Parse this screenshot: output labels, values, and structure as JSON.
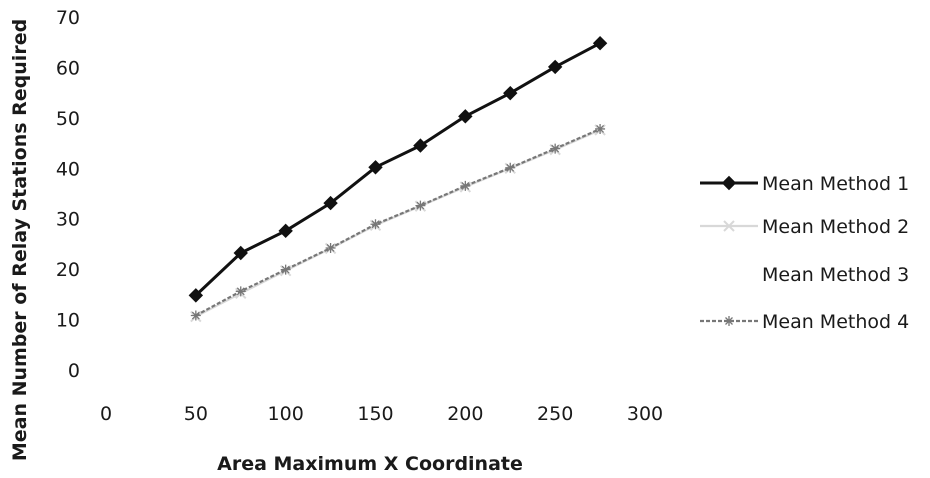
{
  "chart_data": {
    "type": "line",
    "title": "",
    "xlabel": "Area Maximum X Coordinate",
    "ylabel": "Mean Number of Relay Stations Required",
    "xlim": [
      0,
      300
    ],
    "ylim": [
      0,
      70
    ],
    "x_ticks": [
      "0",
      "50",
      "100",
      "150",
      "200",
      "250",
      "300"
    ],
    "y_ticks": [
      "0",
      "10",
      "20",
      "30",
      "40",
      "50",
      "60",
      "70"
    ],
    "grid": false,
    "legend_position": "right",
    "x": [
      50,
      75,
      100,
      125,
      150,
      175,
      200,
      225,
      250,
      275
    ],
    "series": [
      {
        "name": "Mean Method 1",
        "values": [
          14.8,
          23.2,
          27.6,
          33.1,
          40.2,
          44.5,
          50.3,
          54.9,
          60.1,
          64.8
        ],
        "color": "#111111",
        "marker": "diamond"
      },
      {
        "name": "Mean Method 2",
        "values": [
          10.6,
          15.2,
          19.7,
          24.1,
          28.7,
          32.5,
          36.3,
          40.0,
          43.7,
          47.6
        ],
        "color": "#d8d8d8",
        "marker": "x"
      },
      {
        "name": "Mean Method 3",
        "values": [
          10.9,
          15.5,
          20.0,
          24.4,
          29.0,
          32.8,
          36.6,
          40.3,
          44.0,
          47.9
        ],
        "color": "#ffffff",
        "marker": "none"
      },
      {
        "name": "Mean Method 4",
        "values": [
          10.8,
          15.6,
          19.9,
          24.2,
          28.9,
          32.6,
          36.5,
          40.1,
          43.9,
          47.8
        ],
        "color": "#777777",
        "marker": "star"
      }
    ]
  }
}
